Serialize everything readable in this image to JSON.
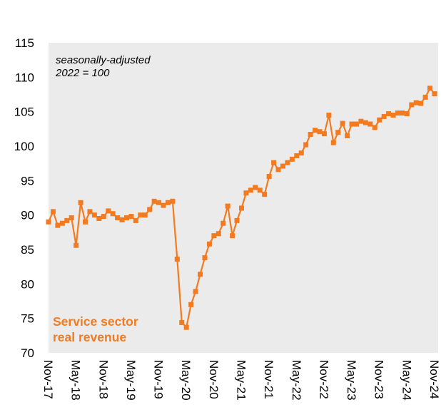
{
  "chart_data": {
    "type": "line",
    "annotations": [
      "seasonally-adjusted",
      "2022 = 100"
    ],
    "categories": [
      "Nov-17",
      null,
      null,
      null,
      null,
      null,
      "May-18",
      null,
      null,
      null,
      null,
      null,
      "Nov-18",
      null,
      null,
      null,
      null,
      null,
      "May-19",
      null,
      null,
      null,
      null,
      null,
      "Nov-19",
      null,
      null,
      null,
      null,
      null,
      "May-20",
      null,
      null,
      null,
      null,
      null,
      "Nov-20",
      null,
      null,
      null,
      null,
      null,
      "May-21",
      null,
      null,
      null,
      null,
      null,
      "Nov-21",
      null,
      null,
      null,
      null,
      null,
      "May-22",
      null,
      null,
      null,
      null,
      null,
      "Nov-22",
      null,
      null,
      null,
      null,
      null,
      "May-23",
      null,
      null,
      null,
      null,
      null,
      "Nov-23",
      null,
      null,
      null,
      null,
      null,
      "May-24",
      null,
      null,
      null,
      null,
      null,
      "Nov-24"
    ],
    "series": [
      {
        "name": "Service sector real revenue",
        "color": "#f47a1f",
        "values": [
          89.0,
          90.5,
          88.5,
          88.8,
          89.2,
          89.6,
          85.6,
          91.8,
          89.0,
          90.5,
          90.0,
          89.5,
          89.8,
          90.6,
          90.2,
          89.6,
          89.3,
          89.6,
          89.8,
          89.2,
          90.0,
          90.0,
          90.8,
          92.0,
          91.8,
          91.4,
          91.8,
          92.0,
          83.6,
          74.4,
          73.7,
          77.0,
          78.9,
          81.4,
          83.8,
          85.8,
          87.0,
          87.3,
          88.8,
          91.3,
          87.0,
          89.2,
          91.0,
          93.2,
          93.6,
          94.0,
          93.6,
          93.0,
          95.6,
          97.6,
          96.6,
          97.1,
          97.6,
          98.1,
          98.6,
          99.0,
          100.2,
          101.7,
          102.3,
          102.1,
          101.8,
          104.5,
          100.5,
          102.0,
          103.3,
          101.5,
          103.2,
          103.2,
          103.6,
          103.4,
          103.2,
          102.7,
          103.8,
          104.3,
          104.7,
          104.5,
          104.8,
          104.8,
          104.7,
          106.0,
          106.3,
          106.2,
          107.1,
          108.4,
          107.6
        ]
      }
    ],
    "ylim": [
      70,
      115
    ],
    "yticks": [
      70,
      75,
      80,
      85,
      90,
      95,
      100,
      105,
      110,
      115
    ],
    "background": "#ebebeb",
    "grid": false
  }
}
